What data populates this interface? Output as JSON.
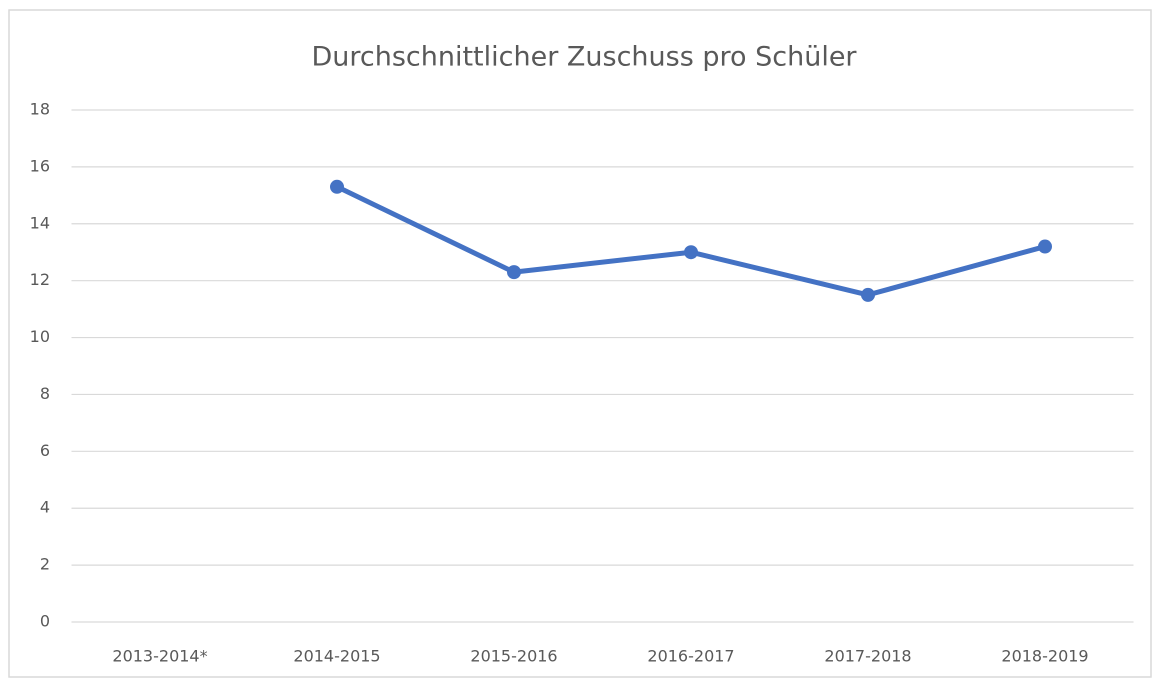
{
  "chart_data": {
    "type": "line",
    "title": "Durchschnittlicher Zuschuss pro Schüler",
    "categories": [
      "2013-2014*",
      "2014-2015",
      "2015-2016",
      "2016-2017",
      "2017-2018",
      "2018-2019"
    ],
    "series": [
      {
        "name": "Zuschuss",
        "color": "#4472c4",
        "values": [
          null,
          15.3,
          12.3,
          13.0,
          11.5,
          13.2
        ]
      }
    ],
    "ylim": [
      0,
      18
    ],
    "yticks": [
      0,
      2,
      4,
      6,
      8,
      10,
      12,
      14,
      16,
      18
    ],
    "grid": true,
    "legend": false
  }
}
